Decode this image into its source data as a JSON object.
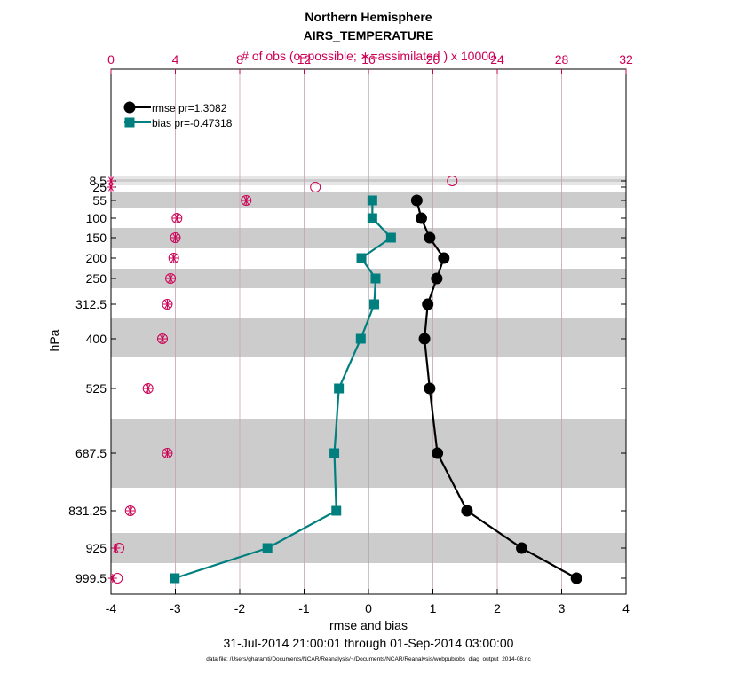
{
  "chart_data": {
    "type": "line",
    "title": "Northern Hemisphere",
    "subtitle": "AIRS_TEMPERATURE",
    "top_axis_label": "# of obs (o=possible; ∗=assimilated ) x 10000",
    "xlabel": "rmse and bias",
    "ylabel": "hPa",
    "period": "31-Jul-2014 21:00:01 through 01-Sep-2014 03:00:00",
    "datafile": "data file: /Users/gharamti/Documents/NCAR/Reanalysis/~/Documents/NCAR/Reanalysis/webpub/obs_diag_output_2014-08.nc",
    "xlim": [
      -4,
      4
    ],
    "xticks": [
      "-4",
      "-3",
      "-2",
      "-1",
      "0",
      "1",
      "2",
      "3",
      "4"
    ],
    "top_xlim": [
      0,
      32
    ],
    "top_xticks": [
      "0",
      "4",
      "8",
      "12",
      "16",
      "20",
      "24",
      "28",
      "32"
    ],
    "levels": [
      "8.5",
      "25",
      "55",
      "100",
      "150",
      "200",
      "250",
      "312.5",
      "400",
      "525",
      "687.5",
      "831.25",
      "925",
      "999.5"
    ],
    "level_values": [
      8.5,
      25,
      55,
      100,
      150,
      200,
      250,
      312.5,
      400,
      525,
      687.5,
      831.25,
      925,
      999.5
    ],
    "series": [
      {
        "name": "rmse",
        "legend": "rmse pr=1.3082",
        "color": "#000000",
        "levels": [
          55,
          100,
          150,
          200,
          250,
          312.5,
          400,
          525,
          687.5,
          831.25,
          925,
          999.5
        ],
        "values": [
          0.75,
          0.82,
          0.95,
          1.17,
          1.06,
          0.92,
          0.87,
          0.95,
          1.07,
          1.53,
          2.38,
          3.23
        ]
      },
      {
        "name": "bias",
        "legend": "bias pr=-0.47318",
        "color": "#007f7f",
        "levels": [
          55,
          100,
          150,
          200,
          250,
          312.5,
          400,
          525,
          687.5,
          831.25,
          925,
          999.5
        ],
        "values": [
          0.06,
          0.06,
          0.35,
          -0.11,
          0.11,
          0.09,
          -0.12,
          -0.46,
          -0.53,
          -0.5,
          -1.57,
          -3.01
        ]
      }
    ],
    "obs_possible": {
      "name": "possible (o)",
      "color": "#cc0055",
      "levels": [
        8.5,
        25,
        55,
        100,
        150,
        200,
        250,
        312.5,
        400,
        525,
        687.5,
        831.25,
        925,
        999.5
      ],
      "values": [
        21.2,
        12.7,
        8.4,
        4.1,
        4.0,
        3.9,
        3.7,
        3.5,
        3.2,
        2.3,
        3.5,
        1.2,
        0.5,
        0.4
      ]
    },
    "obs_assimilated": {
      "name": "assimilated (*)",
      "color": "#cc0055",
      "levels": [
        8.5,
        25,
        55,
        100,
        150,
        200,
        250,
        312.5,
        400,
        525,
        687.5,
        831.25,
        925,
        999.5
      ],
      "values": [
        0.0,
        0.0,
        8.4,
        4.1,
        4.0,
        3.9,
        3.7,
        3.5,
        3.2,
        2.3,
        3.5,
        1.2,
        0.3,
        0.1
      ]
    },
    "grid": true,
    "legend_position": "top-left"
  }
}
